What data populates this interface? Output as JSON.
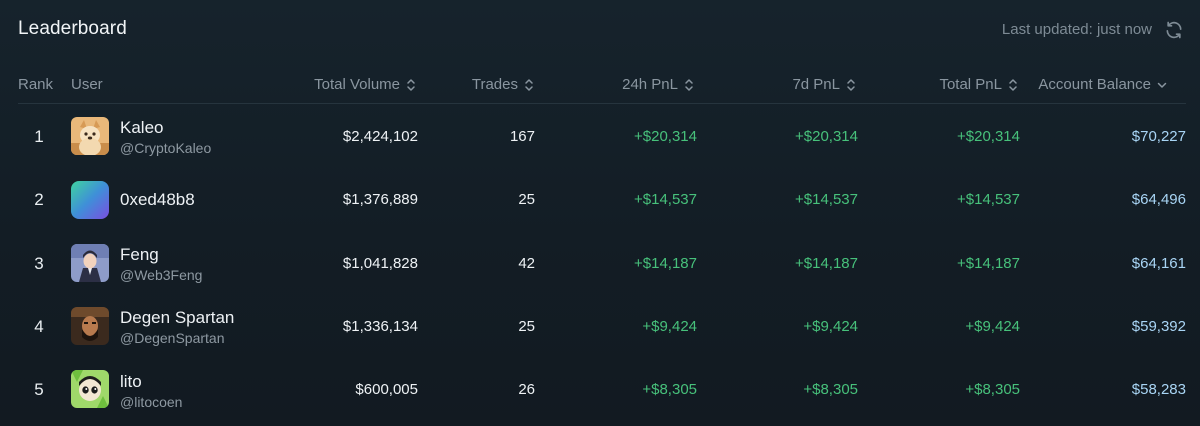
{
  "header": {
    "title": "Leaderboard",
    "last_updated": "Last updated: just now"
  },
  "columns": {
    "rank": "Rank",
    "user": "User",
    "total_volume": "Total Volume",
    "trades": "Trades",
    "pnl_24h": "24h PnL",
    "pnl_7d": "7d PnL",
    "total_pnl": "Total PnL",
    "account_balance": "Account Balance"
  },
  "rows": [
    {
      "rank": "1",
      "name": "Kaleo",
      "handle": "@CryptoKaleo",
      "volume": "$2,424,102",
      "trades": "167",
      "pnl_24h": "+$20,314",
      "pnl_7d": "+$20,314",
      "total_pnl": "+$20,314",
      "balance": "$70,227",
      "avatar": "dog-avatar"
    },
    {
      "rank": "2",
      "name": "0xed48b8",
      "handle": "",
      "volume": "$1,376,889",
      "trades": "25",
      "pnl_24h": "+$14,537",
      "pnl_7d": "+$14,537",
      "total_pnl": "+$14,537",
      "balance": "$64,496",
      "avatar": "gradient-avatar"
    },
    {
      "rank": "3",
      "name": "Feng",
      "handle": "@Web3Feng",
      "volume": "$1,041,828",
      "trades": "42",
      "pnl_24h": "+$14,187",
      "pnl_7d": "+$14,187",
      "total_pnl": "+$14,187",
      "balance": "$64,161",
      "avatar": "anime-avatar"
    },
    {
      "rank": "4",
      "name": "Degen Spartan",
      "handle": "@DegenSpartan",
      "volume": "$1,336,134",
      "trades": "25",
      "pnl_24h": "+$9,424",
      "pnl_7d": "+$9,424",
      "total_pnl": "+$9,424",
      "balance": "$59,392",
      "avatar": "spartan-avatar"
    },
    {
      "rank": "5",
      "name": "lito",
      "handle": "@litocoen",
      "volume": "$600,005",
      "trades": "26",
      "pnl_24h": "+$8,305",
      "pnl_7d": "+$8,305",
      "total_pnl": "+$8,305",
      "balance": "$58,283",
      "avatar": "cartoon-avatar"
    }
  ],
  "colors": {
    "background": "#131d25",
    "pnl_positive": "#47c17b",
    "balance": "#a9d5f5",
    "header_text": "#8a96a0"
  }
}
